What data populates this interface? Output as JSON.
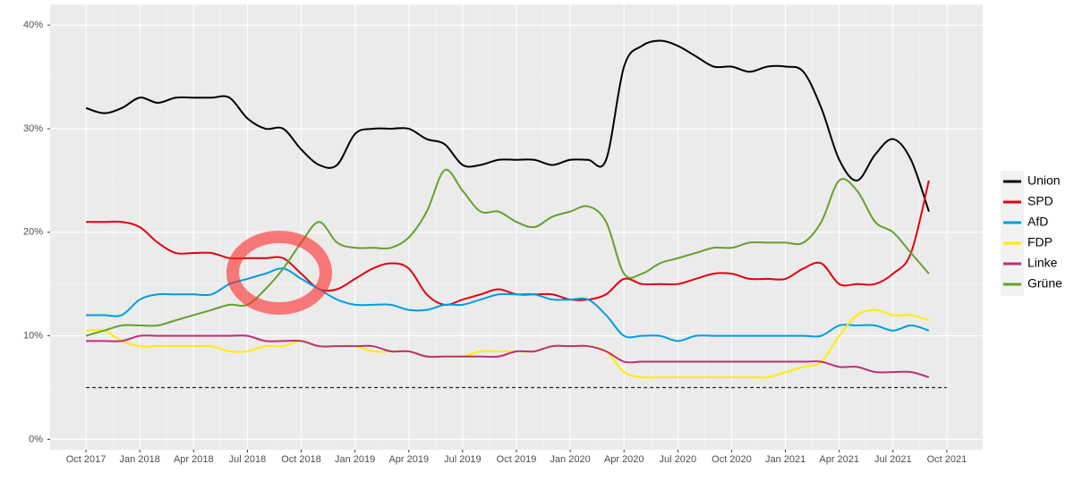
{
  "chart_data": {
    "type": "line",
    "x": [
      "2017-10",
      "2017-11",
      "2017-12",
      "2018-01",
      "2018-02",
      "2018-03",
      "2018-04",
      "2018-05",
      "2018-06",
      "2018-07",
      "2018-08",
      "2018-09",
      "2018-10",
      "2018-11",
      "2018-12",
      "2019-01",
      "2019-02",
      "2019-03",
      "2019-04",
      "2019-05",
      "2019-06",
      "2019-07",
      "2019-08",
      "2019-09",
      "2019-10",
      "2019-11",
      "2019-12",
      "2020-01",
      "2020-02",
      "2020-03",
      "2020-04",
      "2020-05",
      "2020-06",
      "2020-07",
      "2020-08",
      "2020-09",
      "2020-10",
      "2020-11",
      "2020-12",
      "2021-01",
      "2021-02",
      "2021-03",
      "2021-04",
      "2021-05",
      "2021-06",
      "2021-07",
      "2021-08",
      "2021-09"
    ],
    "series": [
      {
        "name": "Union",
        "color": "#000000",
        "values": [
          32,
          31.5,
          32,
          33,
          32.5,
          33,
          33,
          33,
          33,
          31,
          30,
          30,
          28,
          26.5,
          26.5,
          29.5,
          30,
          30,
          30,
          29,
          28.5,
          26.5,
          26.5,
          27,
          27,
          27,
          26.5,
          27,
          27,
          27,
          36,
          38,
          38.5,
          38,
          37,
          36,
          36,
          35.5,
          36,
          36,
          35.5,
          32,
          27,
          25,
          27.5,
          29,
          27,
          22
        ]
      },
      {
        "name": "SPD",
        "color": "#e3000f",
        "values": [
          21,
          21,
          21,
          20.5,
          19,
          18,
          18,
          18,
          17.5,
          17.5,
          17.5,
          17.5,
          16,
          14.5,
          14.5,
          15.5,
          16.5,
          17,
          16.5,
          14,
          13,
          13.5,
          14,
          14.5,
          14,
          14,
          14,
          13.5,
          13.5,
          14,
          15.5,
          15,
          15,
          15,
          15.5,
          16,
          16,
          15.5,
          15.5,
          15.5,
          16.5,
          17,
          15,
          15,
          15,
          16,
          18,
          25
        ]
      },
      {
        "name": "AfD",
        "color": "#009ee0",
        "values": [
          12,
          12,
          12,
          13.5,
          14,
          14,
          14,
          14,
          15,
          15.5,
          16,
          16.5,
          15.5,
          14.5,
          13.5,
          13,
          13,
          13,
          12.5,
          12.5,
          13,
          13,
          13.5,
          14,
          14,
          14,
          13.5,
          13.5,
          13.5,
          12,
          10,
          10,
          10,
          9.5,
          10,
          10,
          10,
          10,
          10,
          10,
          10,
          10,
          11,
          11,
          11,
          10.5,
          11,
          10.5
        ]
      },
      {
        "name": "FDP",
        "color": "#ffed00",
        "values": [
          10.5,
          10.5,
          9.5,
          9,
          9,
          9,
          9,
          9,
          8.5,
          8.5,
          9,
          9,
          9.5,
          9,
          9,
          9,
          8.5,
          8.5,
          8.5,
          8,
          8,
          8,
          8.5,
          8.5,
          8.5,
          8.5,
          9,
          9,
          9,
          8.5,
          6.5,
          6,
          6,
          6,
          6,
          6,
          6,
          6,
          6,
          6.5,
          7,
          7.5,
          10,
          12,
          12.5,
          12,
          12,
          11.5
        ]
      },
      {
        "name": "Linke",
        "color": "#be3075",
        "values": [
          9.5,
          9.5,
          9.5,
          10,
          10,
          10,
          10,
          10,
          10,
          10,
          9.5,
          9.5,
          9.5,
          9,
          9,
          9,
          9,
          8.5,
          8.5,
          8,
          8,
          8,
          8,
          8,
          8.5,
          8.5,
          9,
          9,
          9,
          8.5,
          7.5,
          7.5,
          7.5,
          7.5,
          7.5,
          7.5,
          7.5,
          7.5,
          7.5,
          7.5,
          7.5,
          7.5,
          7,
          7,
          6.5,
          6.5,
          6.5,
          6
        ]
      },
      {
        "name": "Grüne",
        "color": "#64a12d",
        "values": [
          10,
          10.5,
          11,
          11,
          11,
          11.5,
          12,
          12.5,
          13,
          13,
          14.5,
          16.5,
          19,
          21,
          19,
          18.5,
          18.5,
          18.5,
          19.5,
          22,
          26,
          24,
          22,
          22,
          21,
          20.5,
          21.5,
          22,
          22.5,
          21,
          16,
          16,
          17,
          17.5,
          18,
          18.5,
          18.5,
          19,
          19,
          19,
          19,
          21,
          25,
          24,
          21,
          20,
          18,
          16
        ]
      }
    ],
    "threshold": 5,
    "xlim": [
      "2017-08",
      "2021-12"
    ],
    "xticks": [
      {
        "value": "2017-10",
        "label": "Oct 2017"
      },
      {
        "value": "2018-01",
        "label": "Jan 2018"
      },
      {
        "value": "2018-04",
        "label": "Apr 2018"
      },
      {
        "value": "2018-07",
        "label": "Jul 2018"
      },
      {
        "value": "2018-10",
        "label": "Oct 2018"
      },
      {
        "value": "2019-01",
        "label": "Jan 2019"
      },
      {
        "value": "2019-04",
        "label": "Apr 2019"
      },
      {
        "value": "2019-07",
        "label": "Jul 2019"
      },
      {
        "value": "2019-10",
        "label": "Oct 2019"
      },
      {
        "value": "2020-01",
        "label": "Jan 2020"
      },
      {
        "value": "2020-04",
        "label": "Apr 2020"
      },
      {
        "value": "2020-07",
        "label": "Jul 2020"
      },
      {
        "value": "2020-10",
        "label": "Oct 2020"
      },
      {
        "value": "2021-01",
        "label": "Jan 2021"
      },
      {
        "value": "2021-04",
        "label": "Apr 2021"
      },
      {
        "value": "2021-07",
        "label": "Jul 2021"
      },
      {
        "value": "2021-10",
        "label": "Oct 2021"
      }
    ],
    "ylim": [
      -1,
      42
    ],
    "yticks": [
      {
        "value": 0,
        "label": "0%"
      },
      {
        "value": 10,
        "label": "10%"
      },
      {
        "value": 20,
        "label": "20%"
      },
      {
        "value": 30,
        "label": "30%"
      },
      {
        "value": 40,
        "label": "40%"
      }
    ],
    "grid": true,
    "legend": "right"
  }
}
